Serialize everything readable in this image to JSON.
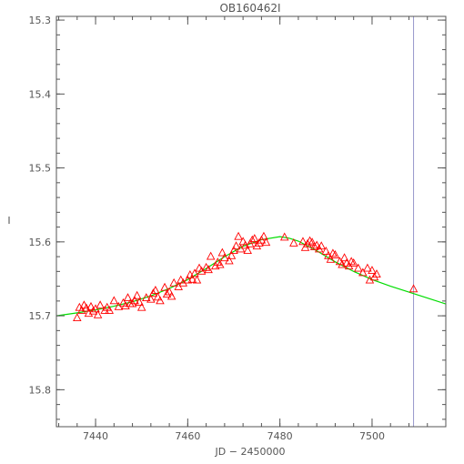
{
  "chart_data": {
    "type": "scatter",
    "title": "OB160462I",
    "xlabel": "JD − 2450000",
    "ylabel": "I",
    "xlim": [
      7431.5,
      7516
    ],
    "ylim": [
      15.295,
      15.85
    ],
    "y_inverted": true,
    "x_ticks": [
      7440,
      7460,
      7480,
      7500
    ],
    "x_tick_labels": [
      "7440",
      "7460",
      "7480",
      "7500"
    ],
    "y_ticks": [
      15.3,
      15.4,
      15.5,
      15.6,
      15.7,
      15.8
    ],
    "y_tick_labels": [
      "15.3",
      "15.4",
      "15.5",
      "15.6",
      "15.7",
      "15.8"
    ],
    "x_minor_step": 4,
    "y_minor_step": 0.02,
    "grid": false,
    "vertical_line": {
      "x": 7509,
      "color": "#9999cc"
    },
    "points_color": "#ff0000",
    "model_color": "#00dd00",
    "model": {
      "x": [
        7431.5,
        7436,
        7440,
        7444,
        7448,
        7452,
        7456,
        7460,
        7464,
        7468,
        7472,
        7476,
        7480,
        7482,
        7484,
        7488,
        7492,
        7496,
        7500,
        7504,
        7508,
        7512,
        7516
      ],
      "y": [
        15.7,
        15.696,
        15.692,
        15.687,
        15.681,
        15.673,
        15.663,
        15.651,
        15.636,
        15.62,
        15.606,
        15.597,
        15.593,
        15.595,
        15.599,
        15.612,
        15.627,
        15.64,
        15.651,
        15.66,
        15.668,
        15.676,
        15.684
      ]
    },
    "series": [
      {
        "x": [
          7436,
          7436.5,
          7437,
          7437.5,
          7438,
          7438.5,
          7439,
          7439.5,
          7440,
          7440.5,
          7441,
          7442,
          7442.5,
          7443,
          7444,
          7445,
          7446,
          7446.5,
          7447,
          7447.5,
          7448,
          7448.5,
          7449,
          7449.5,
          7450,
          7451,
          7452,
          7452.5,
          7453,
          7453.5,
          7454,
          7455,
          7455.5,
          7456,
          7456.5,
          7457,
          7458,
          7458.5,
          7459,
          7460,
          7460.5,
          7461,
          7461.5,
          7462,
          7462.5,
          7463,
          7464,
          7464.5,
          7465,
          7466,
          7466.5,
          7467,
          7467.5,
          7468,
          7469,
          7469.5,
          7470,
          7470.5,
          7471,
          7471.5,
          7472,
          7472.5,
          7473,
          7473.5,
          7474,
          7474.5,
          7475,
          7475.5,
          7476,
          7476.5,
          7477,
          7481,
          7483,
          7485,
          7485.5,
          7486,
          7486.5,
          7487,
          7487.5,
          7488,
          7488.5,
          7489,
          7490,
          7490.5,
          7491,
          7491.5,
          7492,
          7493,
          7493.5,
          7494,
          7494.5,
          7495,
          7495.5,
          7496,
          7497,
          7498,
          7499,
          7499.5,
          7500,
          7500.5,
          7501,
          7509
        ],
        "y": [
          15.703,
          15.689,
          15.693,
          15.686,
          15.69,
          15.697,
          15.688,
          15.694,
          15.691,
          15.699,
          15.686,
          15.693,
          15.689,
          15.693,
          15.68,
          15.688,
          15.683,
          15.687,
          15.676,
          15.684,
          15.684,
          15.68,
          15.673,
          15.682,
          15.689,
          15.676,
          15.678,
          15.67,
          15.666,
          15.675,
          15.68,
          15.662,
          15.671,
          15.668,
          15.674,
          15.656,
          15.661,
          15.652,
          15.656,
          15.652,
          15.645,
          15.651,
          15.643,
          15.652,
          15.636,
          15.64,
          15.635,
          15.638,
          15.62,
          15.633,
          15.628,
          15.631,
          15.615,
          15.622,
          15.626,
          15.619,
          15.612,
          15.606,
          15.593,
          15.61,
          15.6,
          15.605,
          15.612,
          15.603,
          15.598,
          15.596,
          15.606,
          15.602,
          15.598,
          15.593,
          15.601,
          15.594,
          15.602,
          15.6,
          15.608,
          15.603,
          15.599,
          15.601,
          15.607,
          15.605,
          15.61,
          15.606,
          15.613,
          15.619,
          15.624,
          15.616,
          15.618,
          15.627,
          15.631,
          15.622,
          15.629,
          15.633,
          15.627,
          15.629,
          15.636,
          15.642,
          15.636,
          15.652,
          15.639,
          15.648,
          15.644,
          15.664
        ]
      }
    ]
  }
}
